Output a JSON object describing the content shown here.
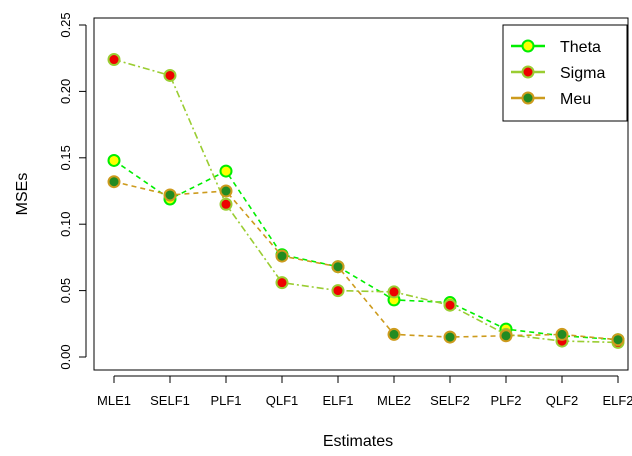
{
  "chart_data": {
    "type": "line",
    "categories": [
      "MLE1",
      "SELF1",
      "PLF1",
      "QLF1",
      "ELF1",
      "MLE2",
      "SELF2",
      "PLF2",
      "QLF2",
      "ELF2"
    ],
    "xlabel": "Estimates",
    "ylabel": "MSEs",
    "ylim": [
      0,
      0.25
    ],
    "yticks": [
      "0.00",
      "0.05",
      "0.10",
      "0.15",
      "0.20",
      "0.25"
    ],
    "grid": false,
    "legend_position": "top-right",
    "series": [
      {
        "name": "Theta",
        "values": [
          0.148,
          0.119,
          0.14,
          0.077,
          0.068,
          0.043,
          0.041,
          0.021,
          0.016,
          0.013
        ],
        "line_color": "#00ee00",
        "marker_fill": "#ffff00",
        "line_style": "dashed"
      },
      {
        "name": "Sigma",
        "values": [
          0.224,
          0.212,
          0.115,
          0.056,
          0.05,
          0.049,
          0.039,
          0.017,
          0.012,
          0.011
        ],
        "line_color": "#9acd32",
        "marker_fill": "#ee0000",
        "line_style": "dashdot"
      },
      {
        "name": "Meu",
        "values": [
          0.132,
          0.122,
          0.125,
          0.076,
          0.068,
          0.017,
          0.015,
          0.016,
          0.017,
          0.013
        ],
        "line_color": "#cd9b1d",
        "marker_fill": "#228b22",
        "line_style": "dashed"
      }
    ]
  }
}
